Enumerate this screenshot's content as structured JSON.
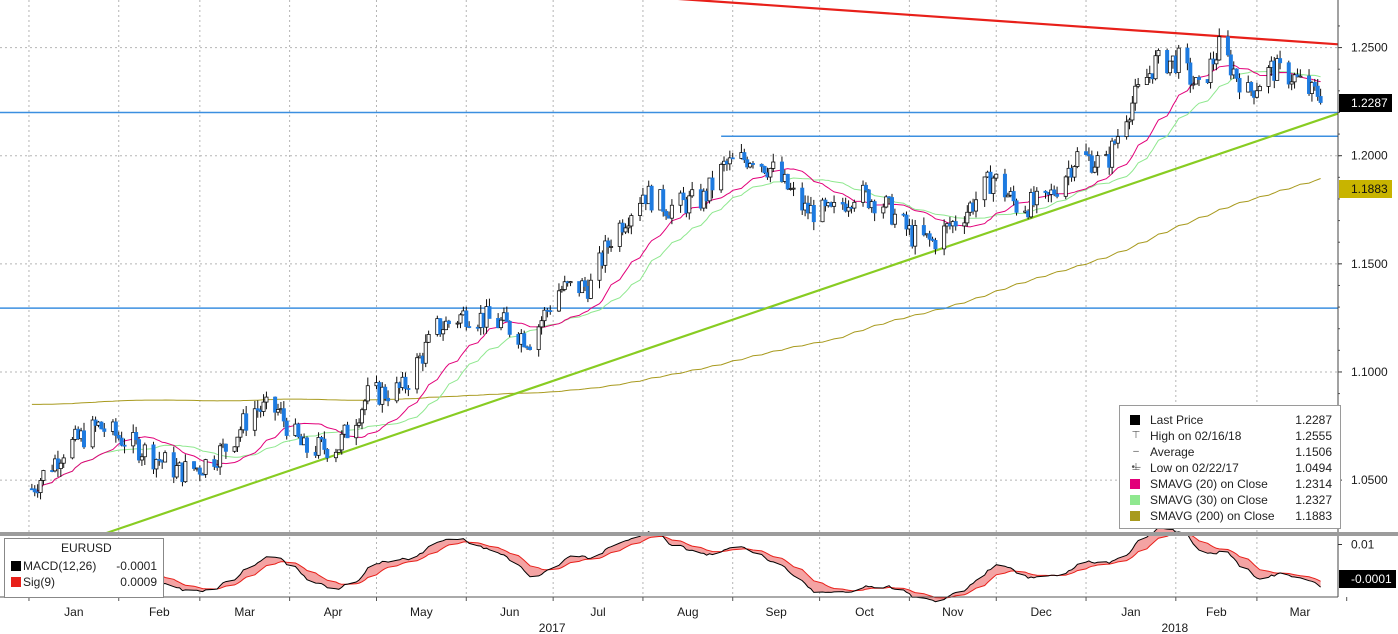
{
  "chart_data": {
    "type": "candlestick",
    "instrument": "EURUSD",
    "y_ticks": [
      "1.2500",
      "1.2000",
      "1.1500",
      "1.1000",
      "1.0500"
    ],
    "ylim": [
      1.026,
      1.272
    ],
    "x_months": [
      "Jan",
      "Feb",
      "Mar",
      "Apr",
      "May",
      "Jun",
      "Jul",
      "Aug",
      "Sep",
      "Oct",
      "Nov",
      "Dec",
      "Jan",
      "Feb",
      "Mar"
    ],
    "x_years": [
      "2017",
      "2018"
    ],
    "price_points": [
      [
        "2017-01-02",
        1.046
      ],
      [
        "2017-01-13",
        1.064
      ],
      [
        "2017-01-25",
        1.075
      ],
      [
        "2017-02-08",
        1.065
      ],
      [
        "2017-02-22",
        1.054
      ],
      [
        "2017-03-01",
        1.056
      ],
      [
        "2017-03-10",
        1.065
      ],
      [
        "2017-03-20",
        1.083
      ],
      [
        "2017-03-28",
        1.082
      ],
      [
        "2017-04-06",
        1.064
      ],
      [
        "2017-04-18",
        1.066
      ],
      [
        "2017-04-28",
        1.089
      ],
      [
        "2017-05-10",
        1.092
      ],
      [
        "2017-05-22",
        1.12
      ],
      [
        "2017-06-01",
        1.127
      ],
      [
        "2017-06-14",
        1.122
      ],
      [
        "2017-06-23",
        1.115
      ],
      [
        "2017-07-03",
        1.138
      ],
      [
        "2017-07-14",
        1.14
      ],
      [
        "2017-07-21",
        1.162
      ],
      [
        "2017-08-01",
        1.183
      ],
      [
        "2017-08-10",
        1.176
      ],
      [
        "2017-08-22",
        1.18
      ],
      [
        "2017-08-29",
        1.195
      ],
      [
        "2017-09-08",
        1.2
      ],
      [
        "2017-09-15",
        1.193
      ],
      [
        "2017-09-26",
        1.175
      ],
      [
        "2017-10-05",
        1.173
      ],
      [
        "2017-10-13",
        1.183
      ],
      [
        "2017-10-23",
        1.178
      ],
      [
        "2017-11-02",
        1.163
      ],
      [
        "2017-11-09",
        1.16
      ],
      [
        "2017-11-21",
        1.175
      ],
      [
        "2017-11-30",
        1.19
      ],
      [
        "2017-12-08",
        1.177
      ],
      [
        "2017-12-18",
        1.178
      ],
      [
        "2017-12-29",
        1.2
      ],
      [
        "2018-01-08",
        1.196
      ],
      [
        "2018-01-15",
        1.22
      ],
      [
        "2018-01-25",
        1.243
      ],
      [
        "2018-02-02",
        1.244
      ],
      [
        "2018-02-09",
        1.23
      ],
      [
        "2018-02-16",
        1.25
      ],
      [
        "2018-02-26",
        1.229
      ],
      [
        "2018-03-06",
        1.24
      ],
      [
        "2018-03-13",
        1.237
      ],
      [
        "2018-03-20",
        1.229
      ]
    ],
    "series": [
      {
        "name": "Last Price",
        "color": "#000000"
      },
      {
        "name": "SMAVG (20) on Close",
        "color": "#e2007a"
      },
      {
        "name": "SMAVG (30) on Close",
        "color": "#8fe88f"
      },
      {
        "name": "SMAVG (200) on Close",
        "color": "#a89a1e"
      }
    ],
    "horizontal_lines": [
      {
        "y": 1.22,
        "color": "#3b8fe0"
      },
      {
        "y": 1.209,
        "color": "#3b8fe0"
      },
      {
        "y": 1.1295,
        "color": "#3b8fe0"
      }
    ],
    "trendlines": [
      {
        "color": "#e8201a",
        "from": [
          "2017-07-17",
          1.275
        ],
        "to": [
          "2018-03-29",
          1.2515
        ]
      },
      {
        "color": "#88cc22",
        "from": [
          "2017-01-27",
          1.0252
        ],
        "to": [
          "2018-03-29",
          1.2195
        ]
      }
    ],
    "last_price_tag": "1.2287",
    "sma200_tag": "1.1883",
    "legend": {
      "rows": [
        {
          "symbol": "sq-black",
          "name": "Last Price",
          "value": "1.2287"
        },
        {
          "symbol": "T",
          "name": "High on 02/16/18",
          "value": "1.2555"
        },
        {
          "symbol": "-o-",
          "name": "Average",
          "value": "1.1506"
        },
        {
          "symbol": "I",
          "name": "Low on 02/22/17",
          "value": "1.0494"
        },
        {
          "symbol": "sq-magenta",
          "name": "SMAVG (20) on Close",
          "value": "1.2314"
        },
        {
          "symbol": "sq-green",
          "name": "SMAVG (30) on Close",
          "value": "1.2327"
        },
        {
          "symbol": "sq-olive",
          "name": "SMAVG (200) on Close",
          "value": "1.1883"
        }
      ]
    },
    "macd": {
      "title": "EURUSD",
      "y_ticks": [
        "0.01"
      ],
      "ylim": [
        -0.004,
        0.012
      ],
      "rows": [
        {
          "name": "MACD(12,26)",
          "value": "-0.0001",
          "color": "#000000"
        },
        {
          "name": "Sig(9)",
          "value": "0.0009",
          "color": "#e8201a"
        }
      ],
      "last_tag": "-0.0001"
    }
  }
}
